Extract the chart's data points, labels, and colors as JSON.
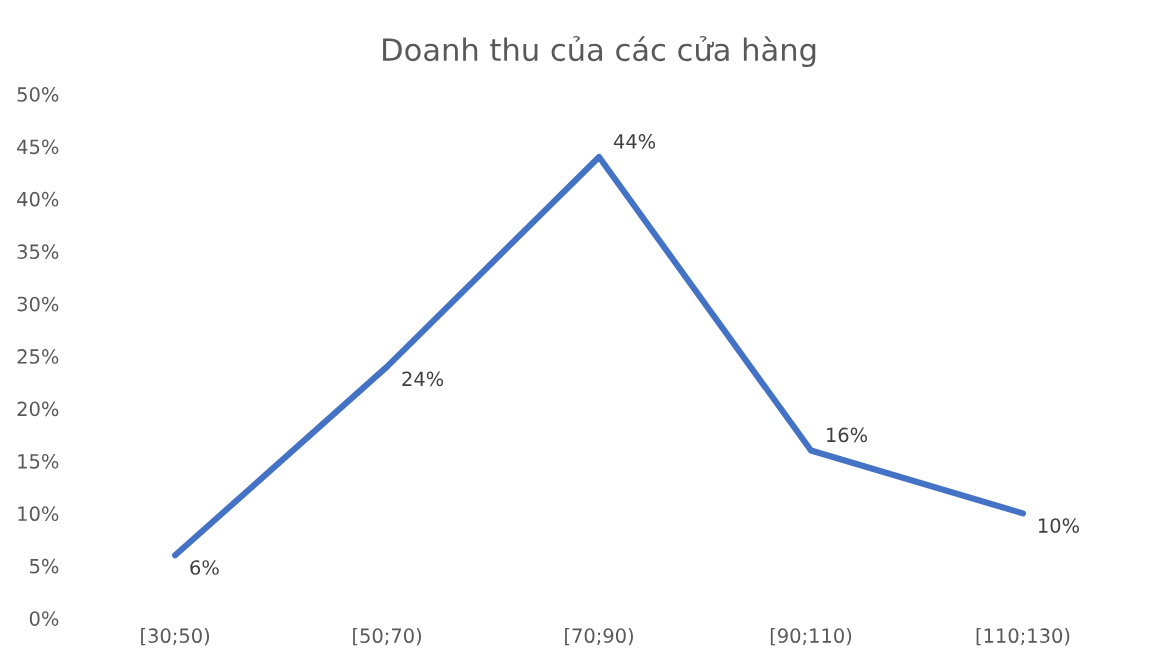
{
  "chart_data": {
    "type": "line",
    "title": "Doanh thu của các cửa hàng",
    "categories": [
      "[30;50)",
      "[50;70)",
      "[70;90)",
      "[90;110)",
      "[110;130)"
    ],
    "series": [
      {
        "color": "#4472c4",
        "values": [
          6,
          24,
          44,
          16,
          10
        ],
        "value_labels": [
          "6%",
          "24%",
          "44%",
          "16%",
          "10%"
        ]
      }
    ],
    "ylim": [
      0,
      50
    ],
    "yticks": [
      {
        "value": 0,
        "label": "0%"
      },
      {
        "value": 5,
        "label": "5%"
      },
      {
        "value": 10,
        "label": "10%"
      },
      {
        "value": 15,
        "label": "15%"
      },
      {
        "value": 20,
        "label": "20%"
      },
      {
        "value": 25,
        "label": "25%"
      },
      {
        "value": 30,
        "label": "30%"
      },
      {
        "value": 35,
        "label": "35%"
      },
      {
        "value": 40,
        "label": "40%"
      },
      {
        "value": 45,
        "label": "45%"
      },
      {
        "value": 50,
        "label": "50%"
      }
    ],
    "grid": false,
    "legend": false,
    "marker": "none",
    "line_style": "solid"
  }
}
